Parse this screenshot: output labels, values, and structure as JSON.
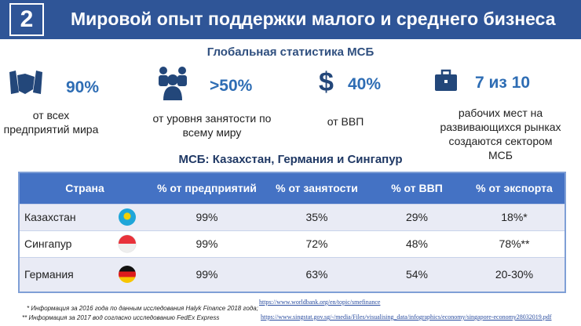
{
  "header": {
    "number": "2",
    "title": "Мировой опыт поддержки малого и среднего бизнеса"
  },
  "global": {
    "title": "Глобальная статистика МСБ",
    "stats": [
      {
        "icon": "handshake-icon",
        "value": "90%",
        "desc": "от всех предприятий мира"
      },
      {
        "icon": "people-icon",
        "value": ">50%",
        "desc": "от уровня занятости по всему миру"
      },
      {
        "icon": "dollar-icon",
        "value": "40%",
        "desc": "от ВВП"
      },
      {
        "icon": "briefcase-icon",
        "value": "7 из 10",
        "desc": "рабочих мест на развивающихся рынках создаются сектором МСБ"
      }
    ]
  },
  "table": {
    "title": "МСБ: Казахстан, Германия и Сингапур",
    "headers": [
      "Страна",
      "% от предприятий",
      "% от занятости",
      "% от ВВП",
      "% от экспорта"
    ],
    "rows": [
      {
        "country": "Казахстан",
        "flag": "kazakhstan-flag-icon",
        "cells": [
          "99%",
          "35%",
          "29%",
          "18%*"
        ]
      },
      {
        "country": "Сингапур",
        "flag": "singapore-flag-icon",
        "cells": [
          "99%",
          "72%",
          "48%",
          "78%**"
        ]
      },
      {
        "country": "Германия",
        "flag": "germany-flag-icon",
        "cells": [
          "99%",
          "63%",
          "54%",
          "20-30%"
        ]
      }
    ]
  },
  "footnotes": [
    "* Информация за 2016 года по данным исследования Halyk Finance 2018 года;",
    "** Информация за 2017 вод согласно исследованию FedEx Express"
  ],
  "links": [
    "https://www.worldbank.org/en/topic/smefinance",
    "https://www.singstat.gov.sg/-/media/Files/visualising_data/infographics/economy/singapore-economy28032019.pdf"
  ]
}
